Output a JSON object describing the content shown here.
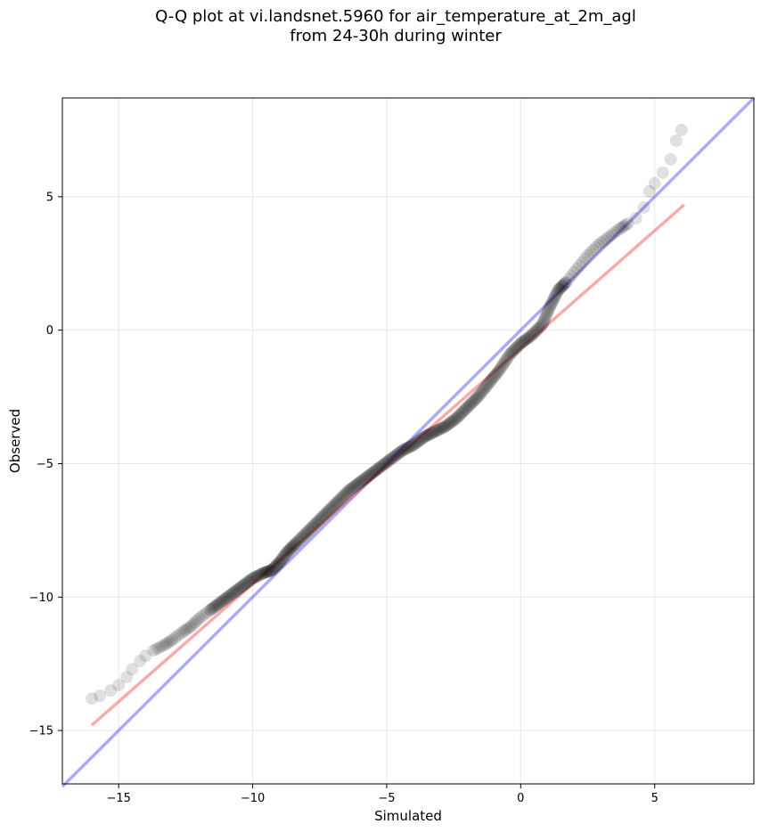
{
  "chart_data": {
    "type": "scatter",
    "title_line1": "Q-Q plot at vi.landsnet.5960 for air_temperature_at_2m_agl",
    "title_line2": "from 24-30h during winter",
    "xlabel": "Simulated",
    "ylabel": "Observed",
    "xlim": [
      -17.1,
      8.7
    ],
    "ylim": [
      -17.0,
      8.7
    ],
    "xticks": [
      -15,
      -10,
      -5,
      0,
      5
    ],
    "yticks": [
      -15,
      -10,
      -5,
      0,
      5
    ],
    "xtick_labels": [
      "−15",
      "−10",
      "−5",
      "0",
      "5"
    ],
    "ytick_labels": [
      "−15",
      "−10",
      "−5",
      "0",
      "5"
    ],
    "grid": true,
    "colors": {
      "points": "#000000",
      "identity_line": "#4444ee",
      "fit_line": "#ee4444"
    },
    "quantiles": {
      "x": [
        -16.0,
        -15.7,
        -15.3,
        -15.0,
        -14.7,
        -14.5,
        -14.2,
        -14.0,
        -13.7,
        -13.3,
        -13.0,
        -12.6,
        -12.3,
        -12.0,
        -11.6,
        -11.2,
        -10.8,
        -10.4,
        -10.0,
        -9.6,
        -9.3,
        -9.0,
        -8.7,
        -8.4,
        -8.0,
        -7.6,
        -7.2,
        -6.8,
        -6.4,
        -6.0,
        -5.6,
        -5.2,
        -4.8,
        -4.4,
        -4.0,
        -3.6,
        -3.2,
        -2.8,
        -2.4,
        -2.0,
        -1.6,
        -1.2,
        -0.8,
        -0.4,
        0.0,
        0.4,
        0.8,
        1.1,
        1.4,
        1.7,
        2.1,
        2.5,
        2.9,
        3.3,
        3.7,
        4.0,
        4.3,
        4.6,
        4.8,
        5.0,
        5.3,
        5.6,
        5.8,
        6.0
      ],
      "y": [
        -13.8,
        -13.7,
        -13.5,
        -13.3,
        -13.0,
        -12.7,
        -12.4,
        -12.2,
        -12.0,
        -11.8,
        -11.6,
        -11.3,
        -11.1,
        -10.8,
        -10.5,
        -10.2,
        -9.9,
        -9.6,
        -9.3,
        -9.1,
        -9.0,
        -8.7,
        -8.3,
        -8.0,
        -7.6,
        -7.2,
        -6.8,
        -6.4,
        -6.0,
        -5.7,
        -5.4,
        -5.1,
        -4.8,
        -4.5,
        -4.3,
        -4.0,
        -3.8,
        -3.6,
        -3.3,
        -2.9,
        -2.5,
        -2.0,
        -1.5,
        -0.9,
        -0.5,
        -0.2,
        0.2,
        0.9,
        1.5,
        1.8,
        2.3,
        2.8,
        3.2,
        3.5,
        3.8,
        4.0,
        4.2,
        4.6,
        5.2,
        5.5,
        5.9,
        6.4,
        7.1,
        7.5
      ]
    },
    "fit_line": {
      "x": [
        -16.0,
        6.1
      ],
      "y": [
        -14.8,
        4.7
      ]
    },
    "identity_line": {
      "x": [
        -17.1,
        8.7
      ],
      "y": [
        -17.1,
        8.7
      ]
    }
  }
}
